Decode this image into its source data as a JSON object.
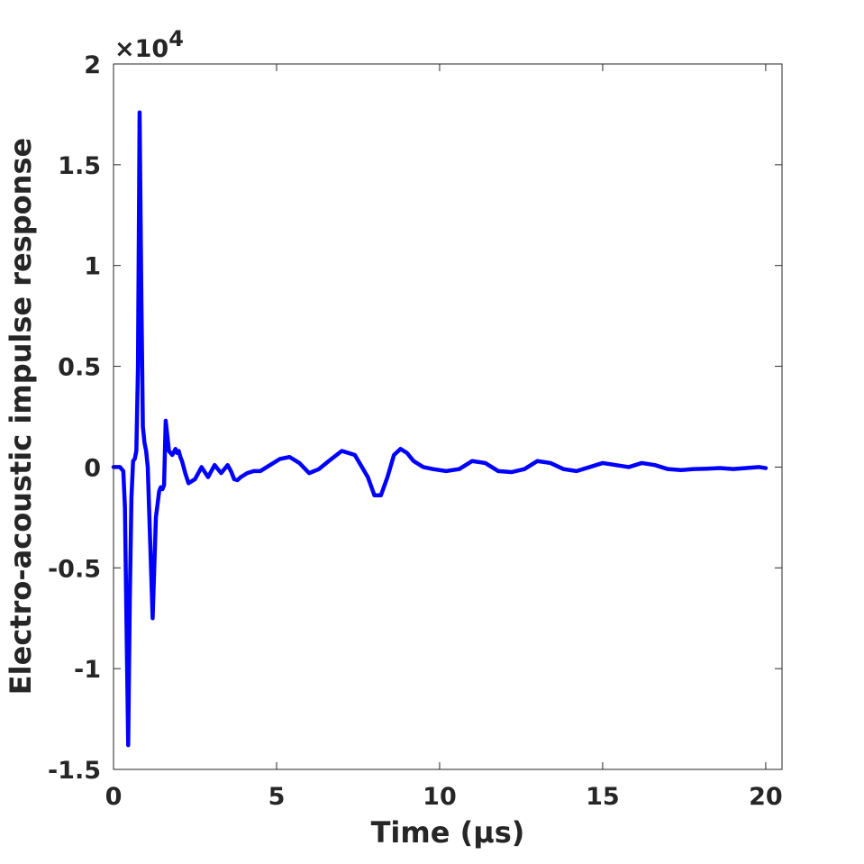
{
  "chart_data": {
    "type": "line",
    "xlabel": "Time (μs)",
    "ylabel": "Electro-acoustic impulse response",
    "y_exponent_label": "×10",
    "y_exponent_power": "4",
    "xlim": [
      0,
      20.5
    ],
    "ylim": [
      -15000,
      20000
    ],
    "x_ticks": [
      0,
      5,
      10,
      15,
      20
    ],
    "x_tick_labels": [
      "0",
      "5",
      "10",
      "15",
      "20"
    ],
    "y_ticks": [
      -15000,
      -10000,
      -5000,
      0,
      5000,
      10000,
      15000,
      20000
    ],
    "y_tick_labels": [
      "-1.5",
      "-1",
      "-0.5",
      "0",
      "0.5",
      "1",
      "1.5",
      "2"
    ],
    "grid": false,
    "line_color": "#0000ff",
    "series": [
      {
        "x": [
          0.0,
          0.2,
          0.3,
          0.35,
          0.4,
          0.45,
          0.5,
          0.55,
          0.6,
          0.65,
          0.7,
          0.75,
          0.8,
          0.85,
          0.9,
          0.95,
          1.0,
          1.05,
          1.1,
          1.2,
          1.3,
          1.4,
          1.45,
          1.5,
          1.55,
          1.6,
          1.7,
          1.8,
          1.9,
          1.95,
          2.0,
          2.05,
          2.1,
          2.2,
          2.3,
          2.5,
          2.7,
          2.9,
          3.1,
          3.3,
          3.5,
          3.6,
          3.7,
          3.8,
          3.9,
          4.1,
          4.3,
          4.5,
          4.8,
          5.1,
          5.4,
          5.7,
          6.0,
          6.3,
          6.6,
          7.0,
          7.4,
          7.8,
          8.0,
          8.2,
          8.4,
          8.6,
          8.8,
          9.0,
          9.2,
          9.5,
          9.8,
          10.2,
          10.6,
          11.0,
          11.4,
          11.8,
          12.2,
          12.6,
          13.0,
          13.4,
          13.8,
          14.2,
          14.6,
          15.0,
          15.4,
          15.8,
          16.2,
          16.6,
          17.0,
          17.4,
          17.8,
          18.2,
          18.6,
          19.0,
          19.4,
          19.8,
          20.0
        ],
        "y": [
          0,
          0,
          -200,
          -2000,
          -8000,
          -13800,
          -6500,
          -1500,
          300,
          400,
          800,
          5000,
          17600,
          9000,
          2000,
          1200,
          800,
          0,
          -2500,
          -7500,
          -2500,
          -1200,
          -1000,
          -1100,
          -900,
          2300,
          800,
          600,
          900,
          700,
          800,
          500,
          300,
          -300,
          -800,
          -600,
          0,
          -500,
          100,
          -300,
          100,
          -200,
          -600,
          -650,
          -500,
          -300,
          -200,
          -200,
          100,
          400,
          500,
          200,
          -300,
          -100,
          300,
          800,
          600,
          -500,
          -1400,
          -1400,
          -500,
          600,
          900,
          700,
          300,
          0,
          -100,
          -200,
          -100,
          300,
          200,
          -200,
          -250,
          -100,
          300,
          200,
          -100,
          -200,
          0,
          200,
          100,
          0,
          200,
          100,
          -100,
          -150,
          -100,
          -80,
          -50,
          -100,
          -50,
          0,
          -50
        ]
      }
    ]
  }
}
